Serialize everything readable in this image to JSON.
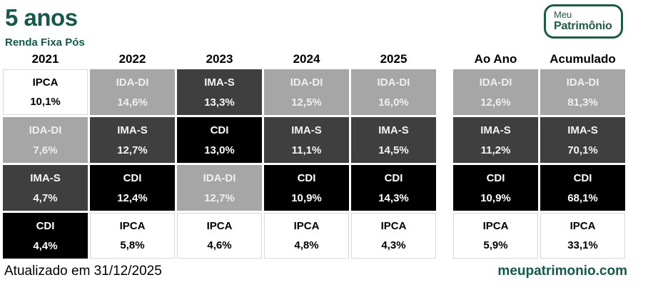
{
  "header": {
    "title": "5 anos",
    "subtitle": "Renda Fixa Pós",
    "logo": {
      "line1": "Meu",
      "line2": "Patrimônio"
    }
  },
  "table": {
    "columns": [
      {
        "label": "2021",
        "cells": [
          {
            "name": "IPCA",
            "value": "10,1%"
          },
          {
            "name": "IDA-DI",
            "value": "7,6%"
          },
          {
            "name": "IMA-S",
            "value": "4,7%"
          },
          {
            "name": "CDI",
            "value": "4,4%"
          }
        ]
      },
      {
        "label": "2022",
        "cells": [
          {
            "name": "IDA-DI",
            "value": "14,6%"
          },
          {
            "name": "IMA-S",
            "value": "12,7%"
          },
          {
            "name": "CDI",
            "value": "12,4%"
          },
          {
            "name": "IPCA",
            "value": "5,8%"
          }
        ]
      },
      {
        "label": "2023",
        "cells": [
          {
            "name": "IMA-S",
            "value": "13,3%"
          },
          {
            "name": "CDI",
            "value": "13,0%"
          },
          {
            "name": "IDA-DI",
            "value": "12,7%"
          },
          {
            "name": "IPCA",
            "value": "4,6%"
          }
        ]
      },
      {
        "label": "2024",
        "cells": [
          {
            "name": "IDA-DI",
            "value": "12,5%"
          },
          {
            "name": "IMA-S",
            "value": "11,1%"
          },
          {
            "name": "CDI",
            "value": "10,9%"
          },
          {
            "name": "IPCA",
            "value": "4,8%"
          }
        ]
      },
      {
        "label": "2025",
        "cells": [
          {
            "name": "IDA-DI",
            "value": "16,0%"
          },
          {
            "name": "IMA-S",
            "value": "14,5%"
          },
          {
            "name": "CDI",
            "value": "14,3%"
          },
          {
            "name": "IPCA",
            "value": "4,3%"
          }
        ]
      },
      {
        "label": "Ao Ano",
        "cells": [
          {
            "name": "IDA-DI",
            "value": "12,6%"
          },
          {
            "name": "IMA-S",
            "value": "11,2%"
          },
          {
            "name": "CDI",
            "value": "10,9%"
          },
          {
            "name": "IPCA",
            "value": "5,9%"
          }
        ]
      },
      {
        "label": "Acumulado",
        "cells": [
          {
            "name": "IDA-DI",
            "value": "81,3%"
          },
          {
            "name": "IMA-S",
            "value": "70,1%"
          },
          {
            "name": "CDI",
            "value": "68,1%"
          },
          {
            "name": "IPCA",
            "value": "33,1%"
          }
        ]
      }
    ]
  },
  "footer": {
    "updated": "Atualizado em 31/12/2025",
    "site": "meupatrimonio.com"
  },
  "colors": {
    "brand_green": "#14594b",
    "cell_ida_di": "#a6a6a6",
    "cell_ima_s": "#3f3f3f",
    "cell_cdi": "#000000",
    "cell_ipca": "#ffffff",
    "white_cell_border": "#d9d9d9"
  },
  "chart_data": {
    "type": "table",
    "title": "5 anos",
    "subtitle": "Renda Fixa Pós",
    "columns": [
      "2021",
      "2022",
      "2023",
      "2024",
      "2025",
      "Ao Ano",
      "Acumulado"
    ],
    "series": [
      {
        "name": "IDA-DI",
        "values": [
          7.6,
          14.6,
          12.7,
          12.5,
          16.0,
          12.6,
          81.3
        ]
      },
      {
        "name": "IMA-S",
        "values": [
          4.7,
          12.7,
          13.3,
          11.1,
          14.5,
          11.2,
          70.1
        ]
      },
      {
        "name": "CDI",
        "values": [
          4.4,
          12.4,
          13.0,
          10.9,
          14.3,
          10.9,
          68.1
        ]
      },
      {
        "name": "IPCA",
        "values": [
          10.1,
          5.8,
          4.6,
          4.8,
          4.3,
          5.9,
          33.1
        ]
      }
    ],
    "unit": "%",
    "note": "Atualizado em 31/12/2025",
    "layout": "each column ranks indices by annual return, best on top; cell shade encodes index identity"
  }
}
